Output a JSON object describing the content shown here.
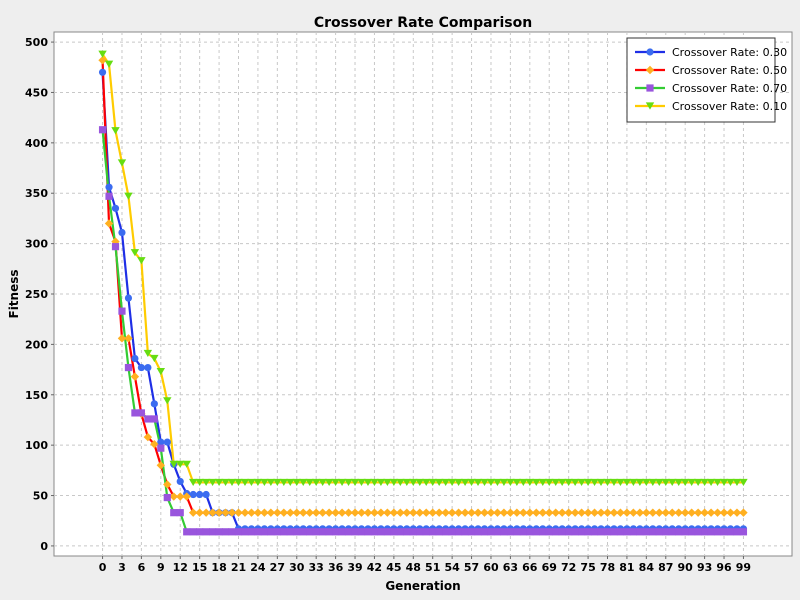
{
  "chart_data": {
    "type": "line",
    "title": "Crossover Rate Comparison",
    "xlabel": "Generation",
    "ylabel": "Fitness",
    "xlim": [
      -7.5,
      106.5
    ],
    "ylim": [
      -10,
      510
    ],
    "x_ticks": [
      0,
      3,
      6,
      9,
      12,
      15,
      18,
      21,
      24,
      27,
      30,
      33,
      36,
      39,
      42,
      45,
      48,
      51,
      54,
      57,
      60,
      63,
      66,
      69,
      72,
      75,
      78,
      81,
      84,
      87,
      90,
      93,
      96,
      99
    ],
    "y_ticks": [
      0,
      50,
      100,
      150,
      200,
      250,
      300,
      350,
      400,
      450,
      500
    ],
    "grid": true,
    "legend_position": "top-right",
    "background": "#ffffff",
    "series": [
      {
        "name": "Crossover Rate: 0.30",
        "color": "#1f2fe6",
        "marker": "circle",
        "values": [
          470,
          356,
          335,
          311,
          246,
          186,
          177,
          177,
          141,
          103,
          103,
          81,
          64,
          52,
          51,
          51,
          51,
          33,
          33,
          33,
          33,
          17
        ]
      },
      {
        "name": "Crossover Rate: 0.50",
        "color": "#ff0000",
        "marker": "diamond",
        "values": [
          482,
          320,
          302,
          206,
          206,
          168,
          131,
          108,
          101,
          80,
          61,
          49,
          49,
          49,
          33
        ]
      },
      {
        "name": "Crossover Rate: 0.70",
        "color": "#33cc33",
        "marker": "square",
        "values": [
          413,
          347,
          297,
          233,
          177,
          132,
          132,
          126,
          126,
          97,
          48,
          33,
          33,
          14
        ]
      },
      {
        "name": "Crossover Rate: 0.10",
        "color": "#ffcc00",
        "marker": "triangle-down",
        "values": [
          488,
          478,
          412,
          380,
          347,
          291,
          283,
          191,
          186,
          173,
          144,
          81,
          81,
          81,
          63
        ]
      }
    ],
    "marker_colors": {
      "Crossover Rate: 0.30": "#3b6cf0",
      "Crossover Rate: 0.50": "#ffb020",
      "Crossover Rate: 0.70": "#9955dd",
      "Crossover Rate: 0.10": "#66dd11"
    }
  }
}
